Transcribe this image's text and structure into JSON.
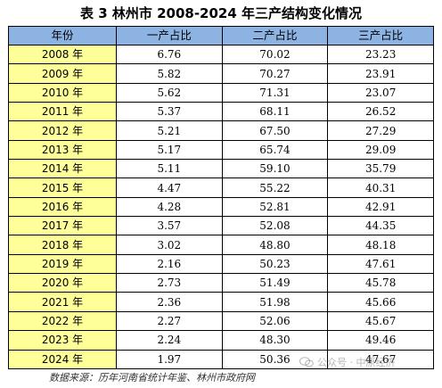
{
  "title": "表 3  林州市 2008-2024 年三产结构变化情况",
  "headers": [
    "年份",
    "一产占比",
    "二产占比",
    "三产占比"
  ],
  "rows": [
    {
      "year": "2008 年",
      "primary": "6.76",
      "secondary": "70.02",
      "tertiary": "23.23"
    },
    {
      "year": "2009 年",
      "primary": "5.82",
      "secondary": "70.27",
      "tertiary": "23.91"
    },
    {
      "year": "2010 年",
      "primary": "5.62",
      "secondary": "71.31",
      "tertiary": "23.07"
    },
    {
      "year": "2011 年",
      "primary": "5.37",
      "secondary": "68.11",
      "tertiary": "26.52"
    },
    {
      "year": "2012 年",
      "primary": "5.21",
      "secondary": "67.50",
      "tertiary": "27.29"
    },
    {
      "year": "2013 年",
      "primary": "5.17",
      "secondary": "65.74",
      "tertiary": "29.09"
    },
    {
      "year": "2014 年",
      "primary": "5.11",
      "secondary": "59.10",
      "tertiary": "35.79"
    },
    {
      "year": "2015 年",
      "primary": "4.47",
      "secondary": "55.22",
      "tertiary": "40.31"
    },
    {
      "year": "2016 年",
      "primary": "4.28",
      "secondary": "52.81",
      "tertiary": "42.91"
    },
    {
      "year": "2017 年",
      "primary": "3.57",
      "secondary": "52.08",
      "tertiary": "44.35"
    },
    {
      "year": "2018 年",
      "primary": "3.02",
      "secondary": "48.80",
      "tertiary": "48.18"
    },
    {
      "year": "2019 年",
      "primary": "2.16",
      "secondary": "50.23",
      "tertiary": "47.61"
    },
    {
      "year": "2020 年",
      "primary": "2.73",
      "secondary": "51.49",
      "tertiary": "45.78"
    },
    {
      "year": "2021 年",
      "primary": "2.36",
      "secondary": "51.98",
      "tertiary": "45.66"
    },
    {
      "year": "2022 年",
      "primary": "2.27",
      "secondary": "52.06",
      "tertiary": "45.67"
    },
    {
      "year": "2023 年",
      "primary": "2.24",
      "secondary": "48.30",
      "tertiary": "49.46"
    },
    {
      "year": "2024 年",
      "primary": "1.97",
      "secondary": "50.36",
      "tertiary": "47.67"
    }
  ],
  "source": "数据来源：历年河南省统计年鉴、林州市政府网",
  "watermark": "公众号 · 中原经济",
  "colors": {
    "header_bg": "#8db3e2",
    "year_bg": "#ffff99"
  }
}
